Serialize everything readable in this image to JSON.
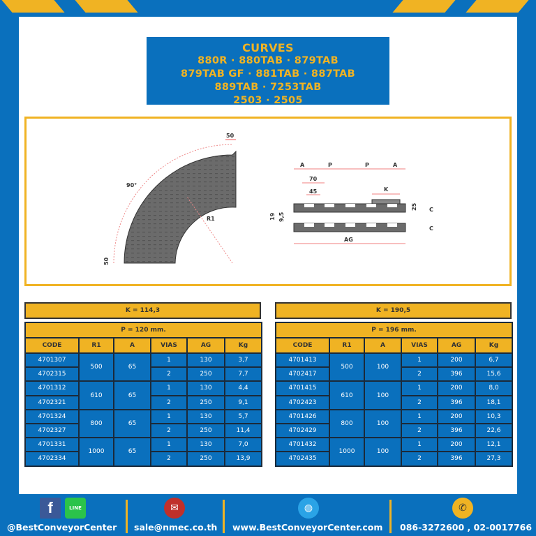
{
  "colors": {
    "blue": "#0a70bd",
    "yellow": "#f0b323",
    "dark": "#1b2a3a"
  },
  "title": {
    "lines": [
      "CURVES",
      "880R · 880TAB · 879TAB",
      "879TAB GF · 881TAB · 887TAB",
      "889TAB · 7253TAB",
      "2503 · 2505"
    ]
  },
  "diagram": {
    "curve": {
      "top_width": "50",
      "angle": "90°",
      "radius": "R1",
      "bottom_width": "50"
    },
    "section": {
      "a1": "A",
      "p1": "P",
      "p2": "P",
      "a2": "A",
      "w70": "70",
      "w45": "45",
      "k": "K",
      "h19": "19",
      "h95": "9,5",
      "h25": "25",
      "c1": "C",
      "c2": "C",
      "ag": "AG"
    }
  },
  "tables": [
    {
      "k": "K = 114,3",
      "p": "P = 120 mm.",
      "headers": [
        "CODE",
        "R1",
        "A",
        "VIAS",
        "AG",
        "Kg"
      ],
      "groups": [
        {
          "r1": "500",
          "a": "65",
          "rows": [
            {
              "code": "4701307",
              "vias": "1",
              "ag": "130",
              "kg": "3,7"
            },
            {
              "code": "4702315",
              "vias": "2",
              "ag": "250",
              "kg": "7,7"
            }
          ]
        },
        {
          "r1": "610",
          "a": "65",
          "rows": [
            {
              "code": "4701312",
              "vias": "1",
              "ag": "130",
              "kg": "4,4"
            },
            {
              "code": "4702321",
              "vias": "2",
              "ag": "250",
              "kg": "9,1"
            }
          ]
        },
        {
          "r1": "800",
          "a": "65",
          "rows": [
            {
              "code": "4701324",
              "vias": "1",
              "ag": "130",
              "kg": "5,7"
            },
            {
              "code": "4702327",
              "vias": "2",
              "ag": "250",
              "kg": "11,4"
            }
          ]
        },
        {
          "r1": "1000",
          "a": "65",
          "rows": [
            {
              "code": "4701331",
              "vias": "1",
              "ag": "130",
              "kg": "7,0"
            },
            {
              "code": "4702334",
              "vias": "2",
              "ag": "250",
              "kg": "13,9"
            }
          ]
        }
      ]
    },
    {
      "k": "K = 190,5",
      "p": "P = 196 mm.",
      "headers": [
        "CODE",
        "R1",
        "A",
        "VIAS",
        "AG",
        "Kg"
      ],
      "groups": [
        {
          "r1": "500",
          "a": "100",
          "rows": [
            {
              "code": "4701413",
              "vias": "1",
              "ag": "200",
              "kg": "6,7"
            },
            {
              "code": "4702417",
              "vias": "2",
              "ag": "396",
              "kg": "15,6"
            }
          ]
        },
        {
          "r1": "610",
          "a": "100",
          "rows": [
            {
              "code": "4701415",
              "vias": "1",
              "ag": "200",
              "kg": "8,0"
            },
            {
              "code": "4702423",
              "vias": "2",
              "ag": "396",
              "kg": "18,1"
            }
          ]
        },
        {
          "r1": "800",
          "a": "100",
          "rows": [
            {
              "code": "4701426",
              "vias": "1",
              "ag": "200",
              "kg": "10,3"
            },
            {
              "code": "4702429",
              "vias": "2",
              "ag": "396",
              "kg": "22,6"
            }
          ]
        },
        {
          "r1": "1000",
          "a": "100",
          "rows": [
            {
              "code": "4701432",
              "vias": "1",
              "ag": "200",
              "kg": "12,1"
            },
            {
              "code": "4702435",
              "vias": "2",
              "ag": "396",
              "kg": "27,3"
            }
          ]
        }
      ]
    }
  ],
  "footer": {
    "social": "@BestConveyorCenter",
    "line_label": "LINE",
    "email": "sale@nmec.co.th",
    "website": "www.BestConveyorCenter.com",
    "phone": "086-3272600 , 02-0017766"
  }
}
